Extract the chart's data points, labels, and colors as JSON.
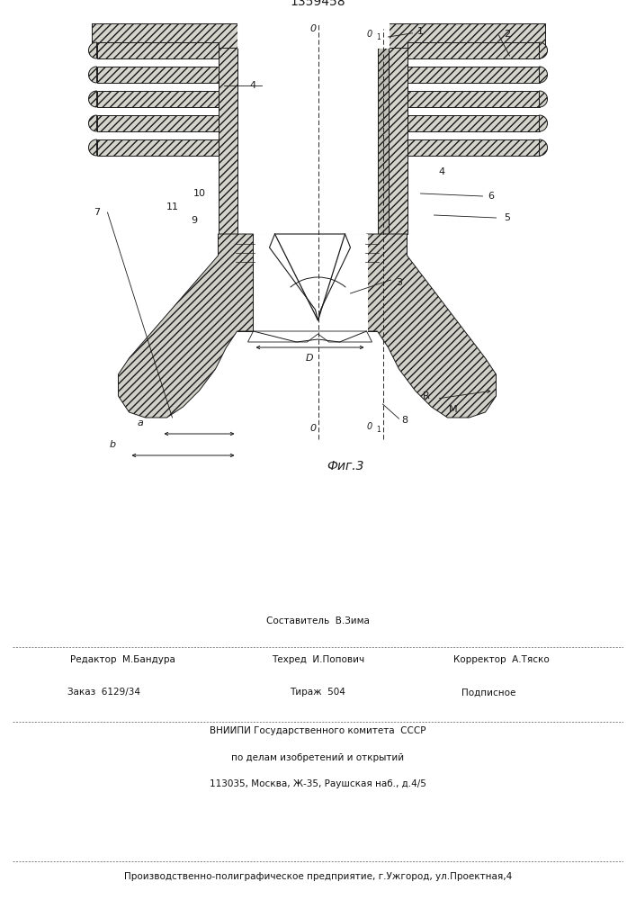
{
  "patent_number": "1359458",
  "fig_label": "Фиг.3",
  "lc": "#1a1a1a",
  "fc_hatch": "#d4d4cc",
  "footer": {
    "line1_left": "Редактор  М.Бандура",
    "line1_center": "Техред  И.Попович",
    "line1_right": "Корректор  А.Тяско",
    "line0": "Составитель  В.Зима",
    "order": "Заказ  6129/34",
    "tirazh": "Тираж  504",
    "podpisnoe": "Подписное",
    "vniiipi1": "ВНИИПИ Государственного комитета  СССР",
    "vniiipi2": "по делам изобретений и открытий",
    "vniiipi3": "113035, Москва, Ж-35, Раушская наб., д.4/5",
    "lastline": "Производственно-полиграфическое предприятие, г.Ужгород, ул.Проектная,4"
  }
}
